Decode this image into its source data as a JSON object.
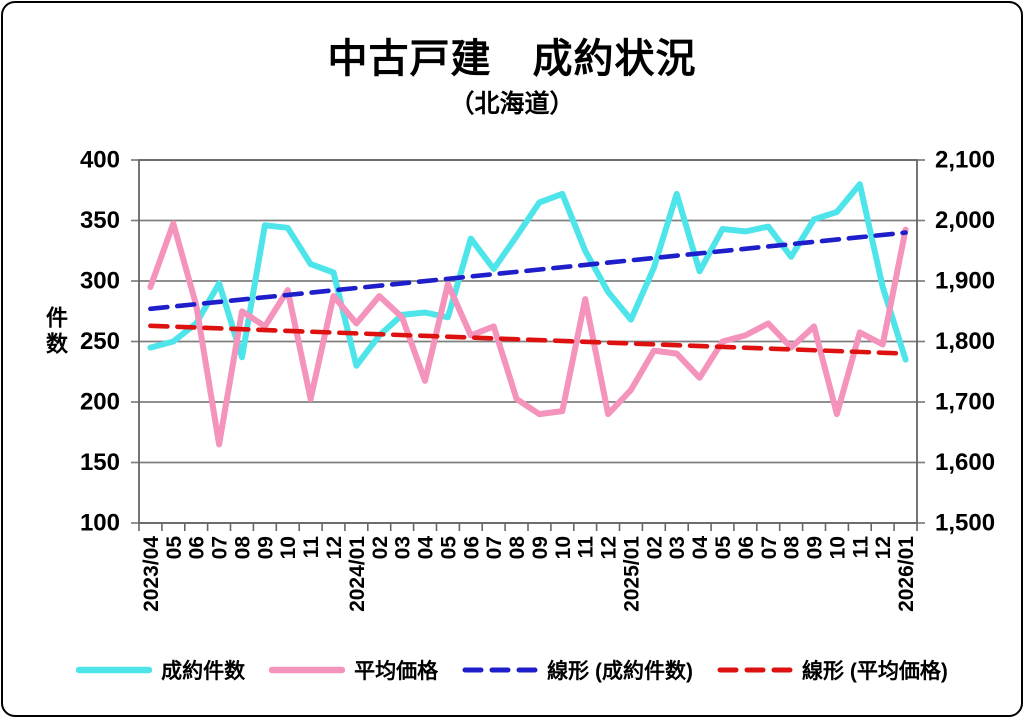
{
  "frame": {
    "background": "#ffffff",
    "border_color": "#000000",
    "grid_color": "#7f7f7f",
    "axis_color": "#666666",
    "text_color": "#000000"
  },
  "chart_data": {
    "type": "line",
    "title": "中古戸建　成約状況",
    "subtitle": "（北海道）",
    "grid": true,
    "legend_position": "bottom",
    "left_axis": {
      "title": "件数",
      "min": 100,
      "max": 400,
      "step": 50,
      "tick_labels": [
        "400",
        "350",
        "300",
        "250",
        "200",
        "150",
        "100"
      ]
    },
    "right_axis": {
      "min": 1500,
      "max": 2100,
      "step": 100,
      "tick_labels": [
        "2,100",
        "2,000",
        "1,900",
        "1,800",
        "1,700",
        "1,600",
        "1,500"
      ]
    },
    "categories": [
      "2023/04",
      "05",
      "06",
      "07",
      "08",
      "09",
      "10",
      "11",
      "12",
      "2024/01",
      "02",
      "03",
      "04",
      "05",
      "06",
      "07",
      "08",
      "09",
      "10",
      "11",
      "12",
      "2025/01",
      "02",
      "03",
      "04",
      "05",
      "06",
      "07",
      "08",
      "09",
      "10",
      "11",
      "12",
      "2026/01"
    ],
    "series": [
      {
        "name": "成約件数",
        "data_name": "contract-count-line",
        "type": "line",
        "axis": "left",
        "color": "#4de4ea",
        "dash": false,
        "values": [
          245,
          250,
          265,
          298,
          237,
          346,
          344,
          314,
          307,
          230,
          255,
          272,
          274,
          270,
          335,
          310,
          337,
          365,
          372,
          325,
          291,
          268,
          311,
          372,
          308,
          343,
          341,
          345,
          320,
          351,
          357,
          380,
          295,
          235
        ]
      },
      {
        "name": "平均価格",
        "data_name": "average-price-line",
        "type": "line",
        "axis": "right",
        "color": "#f493bb",
        "dash": false,
        "values": [
          1890,
          1995,
          1860,
          1630,
          1850,
          1825,
          1885,
          1705,
          1875,
          1830,
          1875,
          1840,
          1735,
          1895,
          1810,
          1825,
          1705,
          1680,
          1685,
          1870,
          1680,
          1720,
          1785,
          1780,
          1740,
          1800,
          1810,
          1830,
          1790,
          1825,
          1680,
          1815,
          1795,
          1985
        ]
      },
      {
        "name": "線形 (成約件数)",
        "data_name": "contract-count-trendline",
        "type": "trend",
        "axis": "left",
        "color": "#1e1ecb",
        "dash": true,
        "values": [
          277,
          340
        ]
      },
      {
        "name": "線形 (平均価格)",
        "data_name": "average-price-trendline",
        "type": "trend",
        "axis": "right",
        "color": "#de1111",
        "dash": true,
        "values": [
          1826,
          1780
        ]
      }
    ]
  }
}
